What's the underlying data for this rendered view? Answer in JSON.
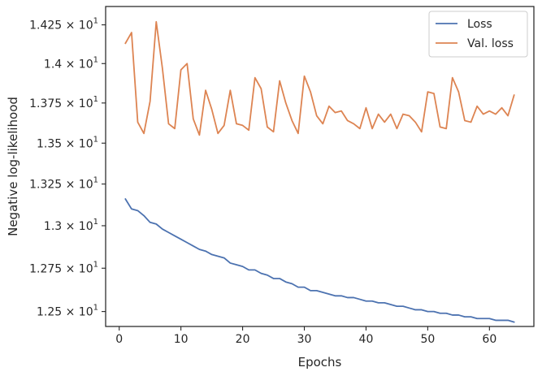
{
  "chart_data": {
    "type": "line",
    "title": "",
    "xlabel": "Epochs",
    "ylabel": "Negative log-likelihood",
    "xlim": [
      -2.2,
      67.2
    ],
    "ylim": [
      12.415,
      14.37
    ],
    "y_scale": "log",
    "x_ticks": [
      0,
      10,
      20,
      30,
      40,
      50,
      60
    ],
    "y_ticks": [
      {
        "value": 12.5,
        "mantissa": "1.25"
      },
      {
        "value": 12.75,
        "mantissa": "1.275"
      },
      {
        "value": 13.0,
        "mantissa": "1.3"
      },
      {
        "value": 13.25,
        "mantissa": "1.325"
      },
      {
        "value": 13.5,
        "mantissa": "1.35"
      },
      {
        "value": 13.75,
        "mantissa": "1.375"
      },
      {
        "value": 14.0,
        "mantissa": "1.4"
      },
      {
        "value": 14.25,
        "mantissa": "1.425"
      }
    ],
    "y_tick_base": "× 10",
    "y_tick_exponent": "1",
    "grid": false,
    "legend_position": "top-right",
    "x": [
      1,
      2,
      3,
      4,
      5,
      6,
      7,
      8,
      9,
      10,
      11,
      12,
      13,
      14,
      15,
      16,
      17,
      18,
      19,
      20,
      21,
      22,
      23,
      24,
      25,
      26,
      27,
      28,
      29,
      30,
      31,
      32,
      33,
      34,
      35,
      36,
      37,
      38,
      39,
      40,
      41,
      42,
      43,
      44,
      45,
      46,
      47,
      48,
      49,
      50,
      51,
      52,
      53,
      54,
      55,
      56,
      57,
      58,
      59,
      60,
      61,
      62,
      63,
      64
    ],
    "series": [
      {
        "name": "Loss",
        "color": "#4c72b0",
        "values": [
          13.16,
          13.1,
          13.09,
          13.06,
          13.02,
          13.01,
          12.98,
          12.96,
          12.94,
          12.92,
          12.9,
          12.88,
          12.86,
          12.85,
          12.83,
          12.82,
          12.81,
          12.78,
          12.77,
          12.76,
          12.74,
          12.74,
          12.72,
          12.71,
          12.69,
          12.69,
          12.67,
          12.66,
          12.64,
          12.64,
          12.62,
          12.62,
          12.61,
          12.6,
          12.59,
          12.59,
          12.58,
          12.58,
          12.57,
          12.56,
          12.56,
          12.55,
          12.55,
          12.54,
          12.53,
          12.53,
          12.52,
          12.51,
          12.51,
          12.5,
          12.5,
          12.49,
          12.49,
          12.48,
          12.48,
          12.47,
          12.47,
          12.46,
          12.46,
          12.46,
          12.45,
          12.45,
          12.45,
          12.44
        ]
      },
      {
        "name": "Val. loss",
        "color": "#dd8452",
        "values": [
          14.13,
          14.2,
          13.63,
          13.56,
          13.76,
          14.27,
          13.97,
          13.62,
          13.59,
          13.96,
          14.0,
          13.65,
          13.55,
          13.83,
          13.71,
          13.56,
          13.61,
          13.83,
          13.62,
          13.61,
          13.58,
          13.91,
          13.84,
          13.6,
          13.57,
          13.89,
          13.75,
          13.64,
          13.56,
          13.92,
          13.82,
          13.67,
          13.62,
          13.73,
          13.69,
          13.7,
          13.64,
          13.62,
          13.59,
          13.72,
          13.59,
          13.68,
          13.63,
          13.68,
          13.59,
          13.68,
          13.67,
          13.63,
          13.57,
          13.82,
          13.81,
          13.6,
          13.59,
          13.91,
          13.82,
          13.64,
          13.63,
          13.73,
          13.68,
          13.7,
          13.68,
          13.72,
          13.67,
          13.8
        ]
      }
    ]
  }
}
